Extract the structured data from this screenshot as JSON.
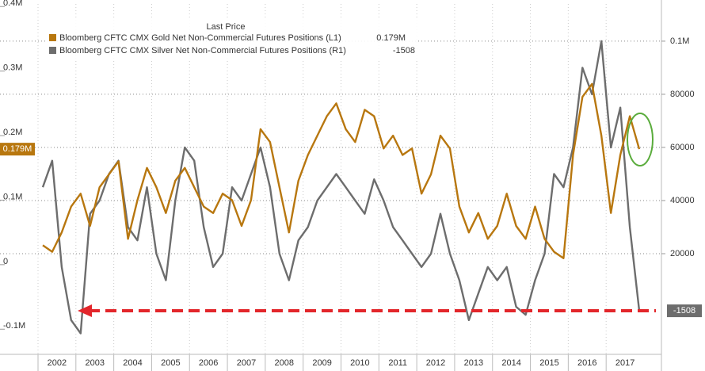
{
  "chart_data": {
    "type": "line",
    "legend_title": "Last Price",
    "categories": [
      "2002",
      null,
      null,
      null,
      "2003",
      null,
      null,
      null,
      "2004",
      null,
      null,
      null,
      "2005",
      null,
      null,
      null,
      "2006",
      null,
      null,
      null,
      "2007",
      null,
      null,
      null,
      "2008",
      null,
      null,
      null,
      "2009",
      null,
      null,
      null,
      "2010",
      null,
      null,
      null,
      "2011",
      null,
      null,
      null,
      "2012",
      null,
      null,
      null,
      "2013",
      null,
      null,
      null,
      "2014",
      null,
      null,
      null,
      "2015",
      null,
      null,
      null,
      "2016",
      null,
      null,
      null,
      "2017",
      null,
      null,
      null
    ],
    "series": [
      {
        "name": "Bloomberg CFTC CMX Gold Net Non-Commercial Futures Positions  (L1)",
        "color": "#b8770f",
        "axis": "y",
        "last_label": "0.179M",
        "values": [
          30000,
          20000,
          50000,
          90000,
          110000,
          60000,
          120000,
          140000,
          160000,
          40000,
          100000,
          150000,
          120000,
          80000,
          130000,
          150000,
          120000,
          90000,
          80000,
          110000,
          100000,
          60000,
          100000,
          210000,
          190000,
          120000,
          50000,
          130000,
          170000,
          200000,
          230000,
          250000,
          210000,
          190000,
          240000,
          230000,
          180000,
          200000,
          170000,
          180000,
          110000,
          140000,
          200000,
          180000,
          90000,
          50000,
          80000,
          40000,
          60000,
          110000,
          60000,
          40000,
          90000,
          40000,
          20000,
          10000,
          170000,
          260000,
          280000,
          200000,
          80000,
          170000,
          230000,
          179000
        ]
      },
      {
        "name": "Bloomberg CFTC CMX Silver Net Non-Commercial Futures Positions  (R1)",
        "color": "#6d6d6d",
        "axis": "y2",
        "last_label": "-1508",
        "values": [
          45000,
          55000,
          15000,
          -5000,
          -10000,
          35000,
          40000,
          50000,
          55000,
          30000,
          25000,
          45000,
          20000,
          10000,
          40000,
          60000,
          55000,
          30000,
          15000,
          20000,
          45000,
          40000,
          50000,
          60000,
          45000,
          20000,
          10000,
          25000,
          30000,
          40000,
          45000,
          50000,
          45000,
          40000,
          35000,
          48000,
          40000,
          30000,
          25000,
          20000,
          15000,
          20000,
          35000,
          20000,
          10000,
          -5000,
          5000,
          15000,
          10000,
          15000,
          0,
          -3000,
          10000,
          20000,
          50000,
          45000,
          60000,
          90000,
          80000,
          100000,
          60000,
          75000,
          30000,
          -1508
        ]
      }
    ],
    "ylim": [
      -139000,
      404000
    ],
    "yticks": [
      {
        "value": 400000,
        "label": "0.4M"
      },
      {
        "value": 300000,
        "label": "0.3M"
      },
      {
        "value": 200000,
        "label": "0.2M"
      },
      {
        "value": 100000,
        "label": "0.1M"
      },
      0,
      {
        "value": -100000,
        "label": "-0.1M"
      }
    ],
    "y2lim": [
      -17900,
      114000
    ],
    "y2ticks": [
      20000,
      40000,
      60000,
      80000,
      {
        "value": 100000,
        "label": "0.1M"
      }
    ],
    "grid": true
  }
}
